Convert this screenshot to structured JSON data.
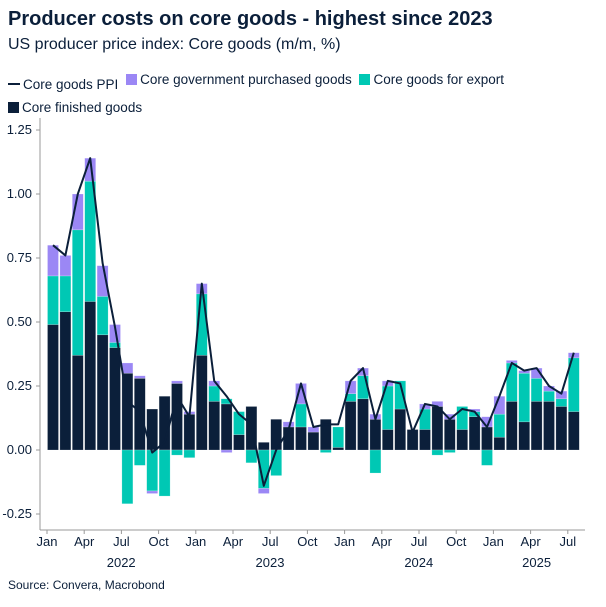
{
  "title": "Producer costs on core goods - highest since 2023",
  "subtitle": "US producer price index: Core goods (m/m, %)",
  "source": "Source: Convera, Macrobond",
  "colors": {
    "core_finished": "#0b1f3a",
    "export": "#00c8b4",
    "government": "#9b87f5",
    "ppi_line": "#0b1f3a"
  },
  "chart_data": {
    "type": "bar",
    "stacked": true,
    "title": "Producer costs on core goods - highest since 2023",
    "subtitle": "US producer price index: Core goods (m/m, %)",
    "legend_position": "top",
    "grid": false,
    "ylim": [
      -0.25,
      1.25
    ],
    "yticks": [
      "-0.25",
      "0.00",
      "0.25",
      "0.50",
      "0.75",
      "1.00",
      "1.25"
    ],
    "yticks_values": [
      -0.25,
      0,
      0.25,
      0.5,
      0.75,
      1,
      1.25
    ],
    "xticks": [
      {
        "index": 0,
        "label": "Jan"
      },
      {
        "index": 3,
        "label": "Apr"
      },
      {
        "index": 6,
        "label": "Jul"
      },
      {
        "index": 9,
        "label": "Oct"
      },
      {
        "index": 12,
        "label": "Jan"
      },
      {
        "index": 15,
        "label": "Apr"
      },
      {
        "index": 18,
        "label": "Jul"
      },
      {
        "index": 21,
        "label": "Oct"
      },
      {
        "index": 24,
        "label": "Jan"
      },
      {
        "index": 27,
        "label": "Apr"
      },
      {
        "index": 30,
        "label": "Jul"
      },
      {
        "index": 33,
        "label": "Oct"
      },
      {
        "index": 36,
        "label": "Jan"
      },
      {
        "index": 39,
        "label": "Apr"
      },
      {
        "index": 42,
        "label": "Jul"
      }
    ],
    "years": [
      {
        "index": 5.5,
        "label": "2022"
      },
      {
        "index": 17.5,
        "label": "2023"
      },
      {
        "index": 29.5,
        "label": "2024"
      },
      {
        "index": 39,
        "label": "2025"
      }
    ],
    "categories": [
      "2022-01",
      "2022-02",
      "2022-03",
      "2022-04",
      "2022-05",
      "2022-06",
      "2022-07",
      "2022-08",
      "2022-09",
      "2022-10",
      "2022-11",
      "2022-12",
      "2023-01",
      "2023-02",
      "2023-03",
      "2023-04",
      "2023-05",
      "2023-06",
      "2023-07",
      "2023-08",
      "2023-09",
      "2023-10",
      "2023-11",
      "2023-12",
      "2024-01",
      "2024-02",
      "2024-03",
      "2024-04",
      "2024-05",
      "2024-06",
      "2024-07",
      "2024-08",
      "2024-09",
      "2024-10",
      "2024-11",
      "2024-12",
      "2025-01",
      "2025-02",
      "2025-03",
      "2025-04",
      "2025-05",
      "2025-06",
      "2025-07"
    ],
    "series": [
      {
        "name": "Core finished goods",
        "type": "bar",
        "values": [
          0.49,
          0.54,
          0.37,
          0.58,
          0.45,
          0.4,
          0.3,
          0.28,
          0.16,
          0.21,
          0.26,
          0.14,
          0.37,
          0.19,
          0.18,
          0.06,
          0.17,
          0.03,
          0.12,
          0.09,
          0.09,
          0.07,
          0.12,
          0.01,
          0.19,
          0.2,
          0.12,
          0.08,
          0.16,
          0.08,
          0.08,
          0.17,
          0.12,
          0.08,
          0.13,
          0.09,
          0.05,
          0.19,
          0.11,
          0.19,
          0.19,
          0.17,
          0.15
        ]
      },
      {
        "name": "Core goods for export",
        "type": "bar",
        "values": [
          0.19,
          0.14,
          0.49,
          0.47,
          0.15,
          0.02,
          -0.21,
          -0.06,
          -0.16,
          -0.18,
          -0.02,
          -0.03,
          0.24,
          0.06,
          0.02,
          0.09,
          -0.05,
          -0.15,
          -0.1,
          0.0,
          0.09,
          0.0,
          -0.01,
          0.08,
          0.03,
          0.09,
          -0.09,
          0.17,
          0.11,
          0.0,
          0.08,
          -0.02,
          -0.01,
          0.09,
          0.02,
          -0.06,
          0.09,
          0.15,
          0.19,
          0.09,
          0.04,
          0.03,
          0.21
        ]
      },
      {
        "name": "Core government purchased goods",
        "type": "bar",
        "values": [
          0.12,
          0.08,
          0.14,
          0.09,
          0.12,
          0.07,
          0.04,
          0.01,
          -0.01,
          0.0,
          0.01,
          0.01,
          0.04,
          0.02,
          -0.01,
          0.0,
          0.0,
          -0.02,
          0.0,
          0.02,
          0.08,
          0.02,
          0.0,
          0.0,
          0.05,
          0.03,
          0.02,
          0.02,
          0.0,
          0.0,
          0.02,
          0.02,
          0.02,
          0.0,
          0.01,
          0.04,
          0.07,
          0.01,
          0.01,
          0.04,
          0.02,
          0.03,
          0.02
        ]
      },
      {
        "name": "Core goods PPI",
        "type": "line",
        "values": [
          0.8,
          0.76,
          1.0,
          1.14,
          0.73,
          0.48,
          0.19,
          0.15,
          -0.01,
          0.03,
          0.21,
          0.13,
          0.65,
          0.27,
          0.21,
          0.14,
          0.1,
          -0.14,
          0.0,
          0.08,
          0.26,
          0.09,
          0.1,
          0.1,
          0.27,
          0.32,
          0.12,
          0.27,
          0.26,
          0.07,
          0.18,
          0.17,
          0.12,
          0.16,
          0.15,
          0.09,
          0.21,
          0.34,
          0.31,
          0.32,
          0.25,
          0.22,
          0.38
        ]
      }
    ]
  }
}
